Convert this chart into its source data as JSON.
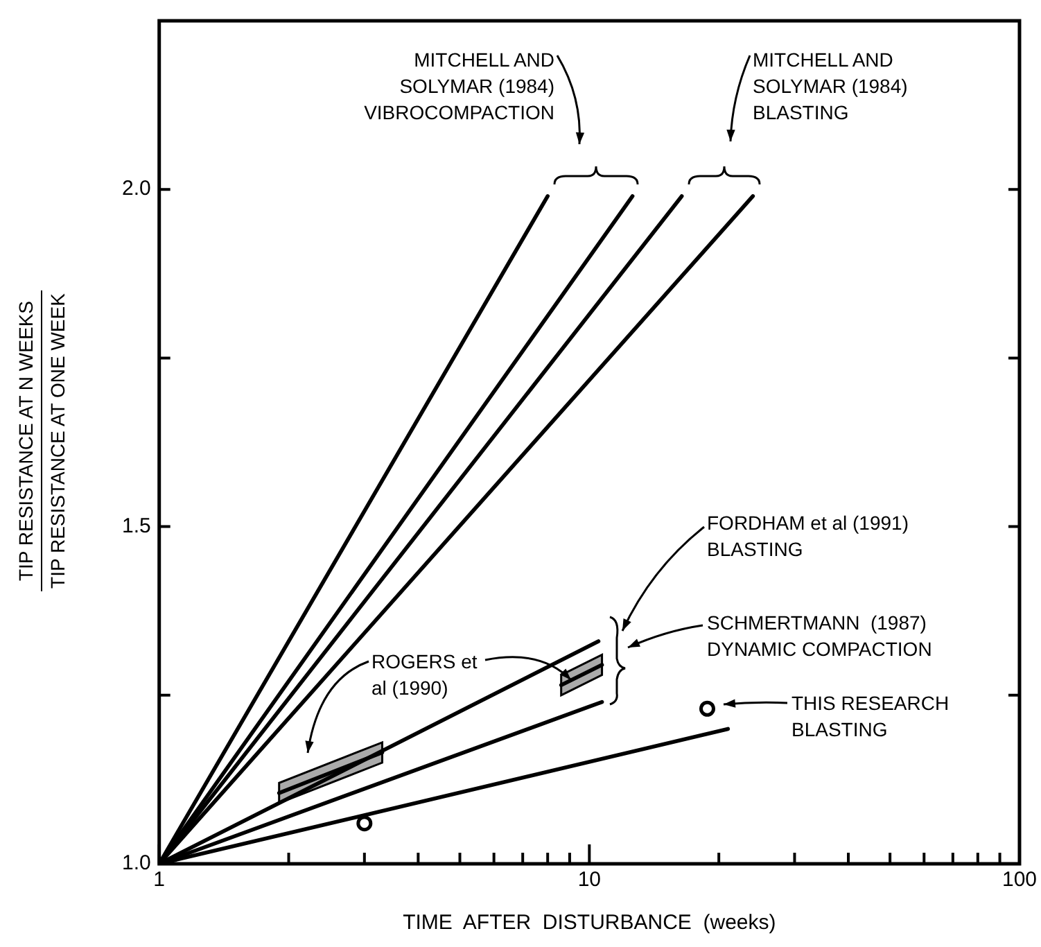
{
  "chart_data": {
    "type": "line",
    "xlabel": "TIME  AFTER  DISTURBANCE  (weeks)",
    "ylabel": "TIP RESISTANCE  AT  N  WEEKS\nTIP RESISTANCE  AT  ONE  WEEK",
    "log": "x",
    "xlim": [
      1,
      100
    ],
    "ylim": [
      1,
      2.25
    ],
    "xticks": [
      1,
      {
        "value": 2,
        "label": null
      },
      {
        "value": 3,
        "label": null
      },
      {
        "value": 4,
        "label": null
      },
      {
        "value": 5,
        "label": null
      },
      {
        "value": 6,
        "label": null
      },
      {
        "value": 7,
        "label": null
      },
      {
        "value": 8,
        "label": null
      },
      {
        "value": 9,
        "label": null
      },
      10,
      {
        "value": 20,
        "label": null
      },
      {
        "value": 30,
        "label": null
      },
      {
        "value": 40,
        "label": null
      },
      {
        "value": 50,
        "label": null
      },
      {
        "value": 60,
        "label": null
      },
      {
        "value": 70,
        "label": null
      },
      {
        "value": 80,
        "label": null
      },
      {
        "value": 90,
        "label": null
      },
      100
    ],
    "yticks": [
      {
        "value": 1,
        "label": "1.0"
      },
      {
        "value": 1.25,
        "label": null
      },
      {
        "value": 1.5,
        "label": "1.5"
      },
      {
        "value": 1.75,
        "label": null
      },
      {
        "value": 2,
        "label": "2.0"
      }
    ],
    "grid": false,
    "legend": false,
    "line_style": "solid",
    "marker": "none",
    "series": [
      {
        "color": "#000000",
        "x": [
          1,
          8
        ],
        "values": [
          1,
          1.99
        ]
      },
      {
        "color": "#000000",
        "x": [
          1,
          12.6
        ],
        "values": [
          1,
          1.99
        ]
      },
      {
        "color": "#000000",
        "x": [
          1,
          16.4
        ],
        "values": [
          1,
          1.99
        ]
      },
      {
        "color": "#000000",
        "x": [
          1,
          24
        ],
        "values": [
          1,
          1.99
        ]
      },
      {
        "color": "#000000",
        "x": [
          1,
          10.5
        ],
        "values": [
          1,
          1.33
        ]
      },
      {
        "color": "#000000",
        "x": [
          1,
          10.7
        ],
        "values": [
          1,
          1.24
        ]
      },
      {
        "color": "#000000",
        "x": [
          1,
          21
        ],
        "values": [
          1,
          1.2
        ]
      },
      {
        "color": "#000000",
        "x": [
          1.9,
          3.3
        ],
        "values": [
          1.105,
          1.165
        ],
        "lower": [
          1.09,
          1.15
        ],
        "upper": [
          1.12,
          1.18
        ]
      },
      {
        "color": "#000000",
        "x": [
          8.6,
          10.7
        ],
        "values": [
          1.265,
          1.295
        ],
        "lower": [
          1.25,
          1.28
        ],
        "upper": [
          1.28,
          1.31
        ]
      },
      {
        "type": "scatter",
        "color": "#000000",
        "marker": "circle",
        "x": [
          3,
          18.8
        ],
        "values": [
          1.06,
          1.23
        ]
      }
    ],
    "annotations": [
      "MITCHELL AND\nSOLYMAR (1984)\nVIBROCOMPACTION",
      "MITCHELL AND\nSOLYMAR (1984)\nBLASTING",
      "FORDHAM et al (1991)\nBLASTING",
      "SCHMERTMANN  (1987)\nDYNAMIC COMPACTION",
      "THIS RESEARCH\nBLASTING",
      {
        "text": "ROGERS et\nal (1990)",
        "x": 9,
        "y": 1.271
      }
    ]
  }
}
